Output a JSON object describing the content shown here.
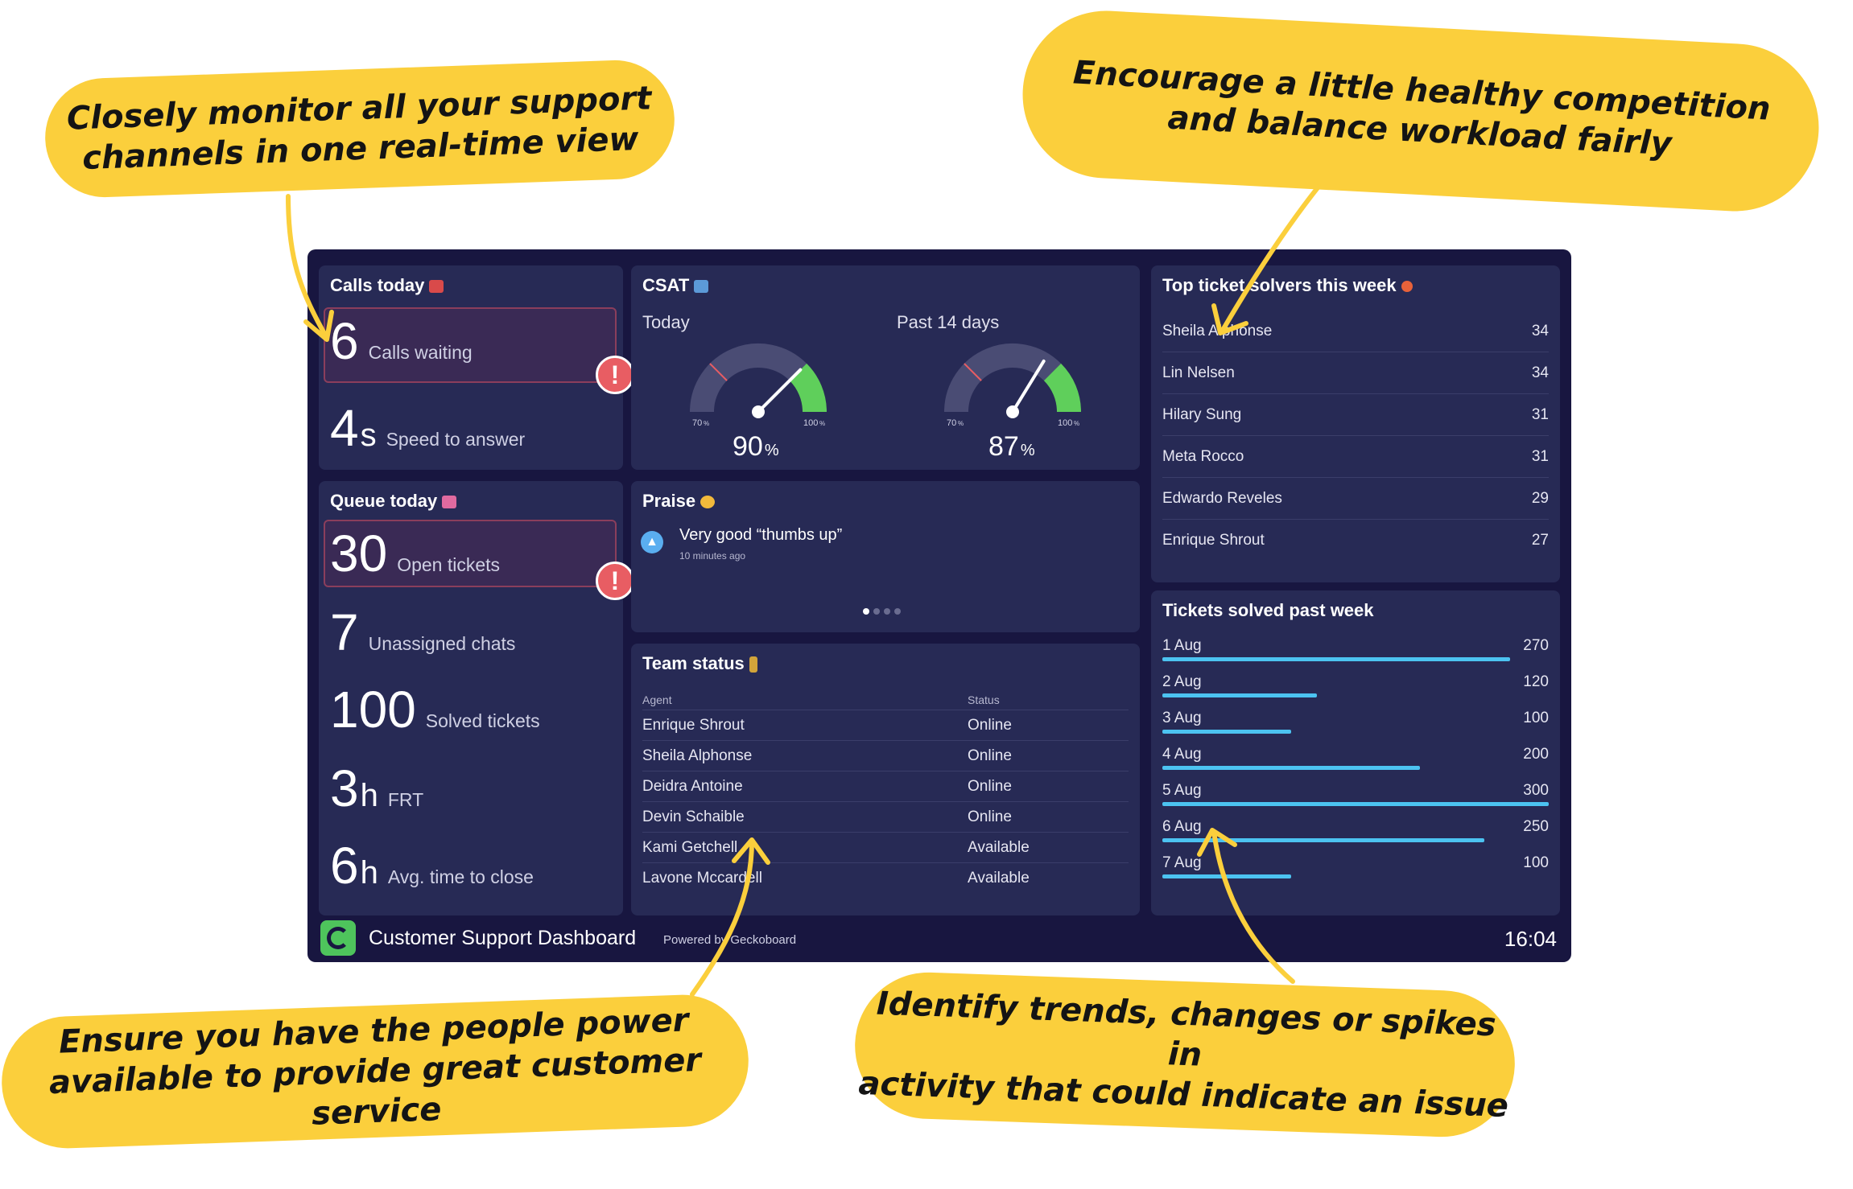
{
  "callouts": {
    "monitor": [
      "Closely monitor all your support",
      "channels in one real-time view"
    ],
    "competition": [
      "Encourage a little healthy competition",
      "and balance workload fairly"
    ],
    "people": [
      "Ensure you have the people power",
      "available to provide great customer service"
    ],
    "trends": [
      "Identify trends, changes or spikes in",
      "activity that could indicate an issue"
    ]
  },
  "calls_today": {
    "title": "Calls today",
    "icon": "telephone-icon",
    "waiting": {
      "value": "6",
      "label": "Calls waiting"
    },
    "speed": {
      "value": "4",
      "unit": "s",
      "label": "Speed to answer"
    }
  },
  "queue_today": {
    "title": "Queue today",
    "icon": "ticket-icon",
    "open": {
      "value": "30",
      "label": "Open tickets"
    },
    "unassigned": {
      "value": "7",
      "label": "Unassigned chats"
    },
    "solved": {
      "value": "100",
      "label": "Solved tickets"
    },
    "frt": {
      "value": "3",
      "unit": "h",
      "label": "FRT"
    },
    "close": {
      "value": "6",
      "unit": "h",
      "label": "Avg. time to close"
    }
  },
  "csat": {
    "title": "CSAT",
    "icon": "ballot-box-icon",
    "today": {
      "label": "Today",
      "value": 90,
      "display": "90",
      "unit": "%",
      "min_label": "70",
      "max_label": "100",
      "unit_small": "%"
    },
    "past": {
      "label": "Past 14 days",
      "value": 87,
      "display": "87",
      "unit": "%",
      "min_label": "70",
      "max_label": "100",
      "unit_small": "%"
    },
    "colors": {
      "track": "#4a4c74",
      "good": "#5fcf5b",
      "needle": "#ffffff",
      "threshold": "#e85d63"
    }
  },
  "praise": {
    "title": "Praise",
    "icon": "star-struck-emoji-icon",
    "message": "Very good “thumbs up”",
    "time": "10 minutes ago"
  },
  "team_status": {
    "title": "Team status",
    "icon": "traffic-light-icon",
    "col_agent": "Agent",
    "col_status": "Status",
    "rows": [
      {
        "agent": "Enrique Shrout",
        "status": "Online"
      },
      {
        "agent": "Sheila Alphonse",
        "status": "Online"
      },
      {
        "agent": "Deidra Antoine",
        "status": "Online"
      },
      {
        "agent": "Devin Schaible",
        "status": "Online"
      },
      {
        "agent": "Kami Getchell",
        "status": "Available"
      },
      {
        "agent": "Lavone Mccardell",
        "status": "Available"
      }
    ]
  },
  "top_solvers": {
    "title": "Top ticket solvers this week",
    "icon": "collision-icon",
    "rows": [
      {
        "name": "Sheila Alphonse",
        "count": "34"
      },
      {
        "name": "Lin Nelsen",
        "count": "34"
      },
      {
        "name": "Hilary Sung",
        "count": "31"
      },
      {
        "name": "Meta Rocco",
        "count": "31"
      },
      {
        "name": "Edwardo Reveles",
        "count": "29"
      },
      {
        "name": "Enrique Shrout",
        "count": "27"
      }
    ]
  },
  "tickets_week": {
    "title": "Tickets solved past week",
    "max": 300,
    "bar_color": "#4cc3f1",
    "rows": [
      {
        "label": "1 Aug",
        "value": 270,
        "display": "270"
      },
      {
        "label": "2 Aug",
        "value": 120,
        "display": "120"
      },
      {
        "label": "3 Aug",
        "value": 100,
        "display": "100"
      },
      {
        "label": "4 Aug",
        "value": 200,
        "display": "200"
      },
      {
        "label": "5 Aug",
        "value": 300,
        "display": "300"
      },
      {
        "label": "6 Aug",
        "value": 250,
        "display": "250"
      },
      {
        "label": "7 Aug",
        "value": 100,
        "display": "100"
      }
    ]
  },
  "footer": {
    "logo": "geckoboard-logo-icon",
    "title": "Customer Support Dashboard",
    "powered": "Powered by Geckoboard",
    "time": "16:04"
  }
}
